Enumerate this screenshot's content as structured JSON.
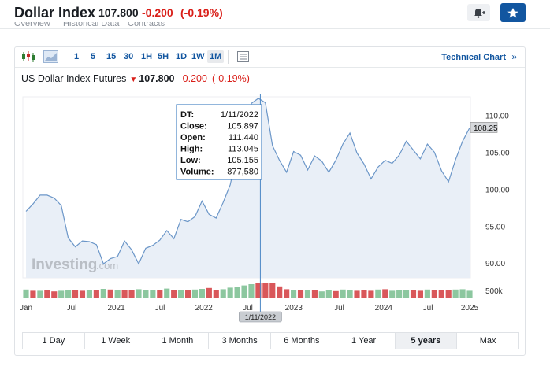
{
  "header": {
    "title": "Dollar Index",
    "price": "107.800",
    "change": "-0.200",
    "change_pct": "(-0.19%)"
  },
  "subtabs": [
    "Overview",
    "Historical Data",
    "Contracts"
  ],
  "toolbar": {
    "timeframes": [
      "1",
      "5",
      "15",
      "30",
      "1H",
      "5H",
      "1D",
      "1W",
      "1M"
    ],
    "active_timeframe": "1M",
    "technical_chart": "Technical Chart",
    "technical_arrow": "»"
  },
  "chart_title": {
    "name": "US Dollar Index Futures",
    "arrow": "▼",
    "price": "107.800",
    "change": "-0.200",
    "change_pct": "(-0.19%)"
  },
  "tooltip": {
    "labels": [
      "DT:",
      "Close:",
      "Open:",
      "High:",
      "Low:",
      "Volume:"
    ],
    "values": [
      "1/11/2022",
      "105.897",
      "111.440",
      "113.045",
      "105.155",
      "877,580"
    ]
  },
  "crosshair_label": "1/11/2022",
  "last_price_label": "108.25",
  "watermark": {
    "main": "Investing",
    "suffix": ".com"
  },
  "volume_label": "500k",
  "colors": {
    "line": "#6b96c8",
    "area": "#e9eff7",
    "vol_up": "#8cc79f",
    "vol_down": "#d9575a",
    "negative": "#d91e18",
    "link": "#1256a0"
  },
  "ranges": [
    "1 Day",
    "1 Week",
    "1 Month",
    "3 Months",
    "6 Months",
    "1 Year",
    "5 years",
    "Max"
  ],
  "active_range": "5 years",
  "chart_data": {
    "type": "area",
    "title": "US Dollar Index Futures",
    "x_tick_labels": [
      "Jan",
      "Jul",
      "2021",
      "Jul",
      "2022",
      "Jul",
      "2023",
      "Jul",
      "2024",
      "Jul",
      "2025"
    ],
    "y_tick_labels": [
      "110.00",
      "105.00",
      "100.00",
      "95.00",
      "90.00"
    ],
    "ylim": [
      88,
      112.5
    ],
    "grid": false,
    "series": [
      {
        "values": [
          97.0,
          98.0,
          99.2,
          99.2,
          98.8,
          97.8,
          93.4,
          92.2,
          93.0,
          92.9,
          92.5,
          89.9,
          90.6,
          90.9,
          93.0,
          91.8,
          89.9,
          92.0,
          92.4,
          93.1,
          94.4,
          93.3,
          95.9,
          95.6,
          96.3,
          98.4,
          96.6,
          96.1,
          98.2,
          100.6,
          105.0,
          108.7,
          111.6,
          112.3,
          111.7,
          105.9,
          103.9,
          102.3,
          105.1,
          104.6,
          102.6,
          104.5,
          103.8,
          102.3,
          103.9,
          106.1,
          107.6,
          104.9,
          103.4,
          101.4,
          103.0,
          103.9,
          103.5,
          104.6,
          106.5,
          105.3,
          104.1,
          106.1,
          105.0,
          102.5,
          101.0,
          104.0,
          106.5,
          108.3
        ],
        "volumes": [
          [
            28,
            "up"
          ],
          [
            24,
            "down"
          ],
          [
            24,
            "up"
          ],
          [
            26,
            "down"
          ],
          [
            22,
            "down"
          ],
          [
            24,
            "up"
          ],
          [
            26,
            "up"
          ],
          [
            27,
            "down"
          ],
          [
            24,
            "down"
          ],
          [
            25,
            "up"
          ],
          [
            26,
            "down"
          ],
          [
            30,
            "up"
          ],
          [
            28,
            "down"
          ],
          [
            27,
            "up"
          ],
          [
            26,
            "down"
          ],
          [
            26,
            "down"
          ],
          [
            29,
            "up"
          ],
          [
            26,
            "up"
          ],
          [
            27,
            "up"
          ],
          [
            25,
            "down"
          ],
          [
            31,
            "up"
          ],
          [
            26,
            "down"
          ],
          [
            26,
            "up"
          ],
          [
            25,
            "down"
          ],
          [
            28,
            "up"
          ],
          [
            30,
            "up"
          ],
          [
            33,
            "down"
          ],
          [
            27,
            "down"
          ],
          [
            29,
            "up"
          ],
          [
            34,
            "up"
          ],
          [
            36,
            "up"
          ],
          [
            41,
            "up"
          ],
          [
            45,
            "up"
          ],
          [
            48,
            "down"
          ],
          [
            50,
            "down"
          ],
          [
            48,
            "down"
          ],
          [
            38,
            "down"
          ],
          [
            29,
            "down"
          ],
          [
            26,
            "up"
          ],
          [
            25,
            "down"
          ],
          [
            26,
            "up"
          ],
          [
            25,
            "down"
          ],
          [
            22,
            "up"
          ],
          [
            26,
            "up"
          ],
          [
            23,
            "down"
          ],
          [
            28,
            "up"
          ],
          [
            27,
            "up"
          ],
          [
            24,
            "down"
          ],
          [
            25,
            "down"
          ],
          [
            24,
            "down"
          ],
          [
            28,
            "up"
          ],
          [
            29,
            "down"
          ],
          [
            24,
            "up"
          ],
          [
            27,
            "up"
          ],
          [
            26,
            "up"
          ],
          [
            25,
            "down"
          ],
          [
            24,
            "down"
          ],
          [
            28,
            "up"
          ],
          [
            26,
            "down"
          ],
          [
            25,
            "down"
          ],
          [
            27,
            "down"
          ],
          [
            28,
            "up"
          ],
          [
            29,
            "up"
          ],
          [
            24,
            "up"
          ]
        ]
      }
    ]
  }
}
